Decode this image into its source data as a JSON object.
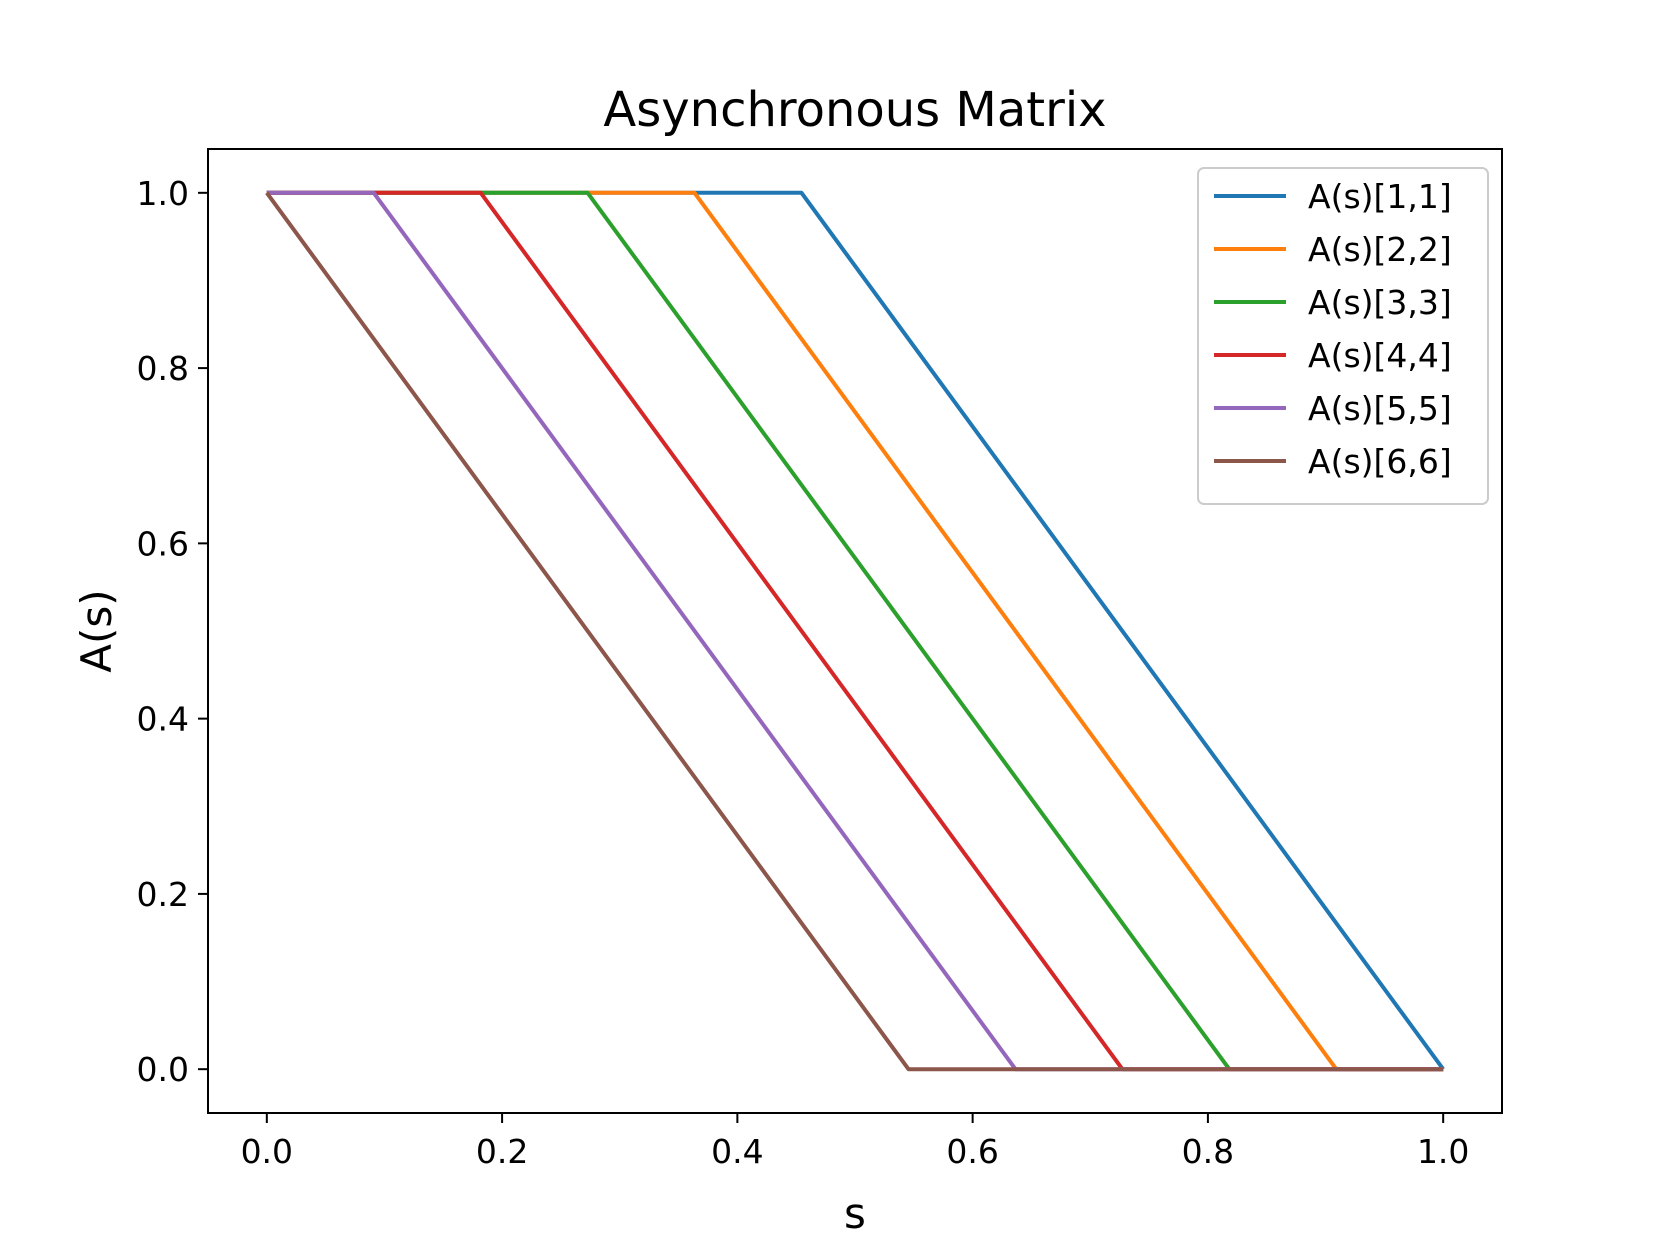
{
  "chart_data": {
    "type": "line",
    "title": "Asynchronous Matrix",
    "xlabel": "s",
    "ylabel": "A(s)",
    "xlim": [
      -0.05,
      1.05
    ],
    "ylim": [
      -0.05,
      1.05
    ],
    "xticks": [
      0.0,
      0.2,
      0.4,
      0.6,
      0.8,
      1.0
    ],
    "xtick_labels": [
      "0.0",
      "0.2",
      "0.4",
      "0.6",
      "0.8",
      "1.0"
    ],
    "yticks": [
      0.0,
      0.2,
      0.4,
      0.6,
      0.8,
      1.0
    ],
    "ytick_labels": [
      "0.0",
      "0.2",
      "0.4",
      "0.6",
      "0.8",
      "1.0"
    ],
    "grid": false,
    "legend_position": "top-right",
    "series": [
      {
        "name": "A(s)[1,1]",
        "color": "#1f77b4",
        "x": [
          0.0,
          0.4545,
          1.0
        ],
        "y": [
          1.0,
          1.0,
          0.0
        ]
      },
      {
        "name": "A(s)[2,2]",
        "color": "#ff7f0e",
        "x": [
          0.0,
          0.3636,
          0.9091,
          1.0
        ],
        "y": [
          1.0,
          1.0,
          0.0,
          0.0
        ]
      },
      {
        "name": "A(s)[3,3]",
        "color": "#2ca02c",
        "x": [
          0.0,
          0.2727,
          0.8182,
          1.0
        ],
        "y": [
          1.0,
          1.0,
          0.0,
          0.0
        ]
      },
      {
        "name": "A(s)[4,4]",
        "color": "#d62728",
        "x": [
          0.0,
          0.1818,
          0.7273,
          1.0
        ],
        "y": [
          1.0,
          1.0,
          0.0,
          0.0
        ]
      },
      {
        "name": "A(s)[5,5]",
        "color": "#9467bd",
        "x": [
          0.0,
          0.0909,
          0.6364,
          1.0
        ],
        "y": [
          1.0,
          1.0,
          0.0,
          0.0
        ]
      },
      {
        "name": "A(s)[6,6]",
        "color": "#8c564b",
        "x": [
          0.0,
          0.5455,
          1.0
        ],
        "y": [
          1.0,
          0.0,
          0.0
        ]
      }
    ]
  }
}
